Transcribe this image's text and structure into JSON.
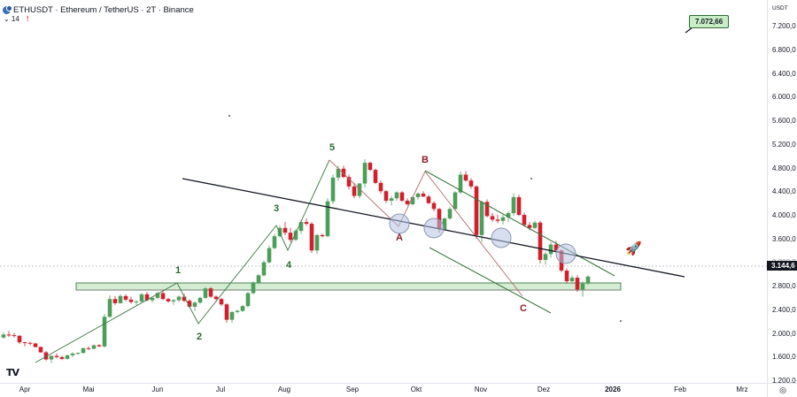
{
  "header": {
    "symbol_title": "ETHUSDT · Ethereum / TetherUS · 2T · Binance",
    "indicator_toggle": "⌄ 14",
    "alert_icon": "!"
  },
  "price_axis": {
    "unit": "USDT",
    "ticks": [
      "7.200,0",
      "6.800,0",
      "6.400,0",
      "6.000,0",
      "5.600,0",
      "5.200,0",
      "4.800,0",
      "4.400,0",
      "4.000,0",
      "3.600,0",
      "3.200,0",
      "2.800,0",
      "2.400,0",
      "2.000,0",
      "1.600,0",
      "1.200,0"
    ],
    "current_price": "3.144,6"
  },
  "time_axis": {
    "ticks": [
      "Apr",
      "Mai",
      "Jun",
      "Jul",
      "Aug",
      "Sep",
      "Okt",
      "Nov",
      "Dez",
      "2026",
      "Feb",
      "Mrz"
    ]
  },
  "annotations": {
    "target_callout": "7.072,66",
    "waves": [
      "1",
      "2",
      "3",
      "4",
      "5",
      "A",
      "B",
      "C"
    ],
    "rocket": "🚀"
  },
  "colors": {
    "up": "#4c9e5a",
    "down": "#d0202e",
    "trendline": "#131722",
    "channel": "#3f7a44",
    "zigzag_up": "#3f7a44",
    "zigzag_down": "#b06a6a",
    "zone_fill": "#d4ecd2",
    "zone_border": "#3f7a44",
    "circle_fill": "#d3dbea",
    "circle_border": "#8a97b0"
  },
  "chart_data": {
    "type": "candlestick",
    "title": "ETHUSDT · Ethereum / TetherUS · 2T · Binance",
    "xlabel": "",
    "ylabel": "USDT",
    "ylim": [
      1200,
      7400
    ],
    "x_range": [
      "2025-04",
      "2026-03"
    ],
    "grid": false,
    "timeframe": "2D",
    "last_price": 3144.6,
    "target_label": 7072.66,
    "support_zone": [
      2780,
      2880
    ],
    "wave_labels": [
      {
        "label": "1",
        "approx_price": 2880,
        "month": "Jun"
      },
      {
        "label": "2",
        "approx_price": 2140,
        "month": "Jun"
      },
      {
        "label": "3",
        "approx_price": 3940,
        "month": "Jul"
      },
      {
        "label": "4",
        "approx_price": 3350,
        "month": "Aug"
      },
      {
        "label": "5",
        "approx_price": 4950,
        "month": "Aug"
      },
      {
        "label": "A",
        "approx_price": 3820,
        "month": "Sep"
      },
      {
        "label": "B",
        "approx_price": 4760,
        "month": "Okt"
      },
      {
        "label": "C",
        "approx_price": 2620,
        "month": "Nov"
      }
    ],
    "candles": [
      [
        4,
        1950,
        2030,
        1930,
        2000
      ],
      [
        10,
        2000,
        2060,
        1960,
        1990
      ],
      [
        16,
        1990,
        2030,
        1950,
        1980
      ],
      [
        22,
        1980,
        1990,
        1840,
        1870
      ],
      [
        28,
        1870,
        1880,
        1800,
        1860
      ],
      [
        34,
        1860,
        1880,
        1820,
        1850
      ],
      [
        40,
        1850,
        1860,
        1780,
        1790
      ],
      [
        46,
        1790,
        1800,
        1690,
        1700
      ],
      [
        52,
        1700,
        1720,
        1560,
        1580
      ],
      [
        58,
        1580,
        1650,
        1520,
        1640
      ],
      [
        64,
        1640,
        1680,
        1600,
        1620
      ],
      [
        70,
        1620,
        1640,
        1570,
        1590
      ],
      [
        76,
        1590,
        1660,
        1580,
        1650
      ],
      [
        82,
        1650,
        1700,
        1620,
        1680
      ],
      [
        88,
        1680,
        1700,
        1660,
        1690
      ],
      [
        94,
        1690,
        1780,
        1680,
        1770
      ],
      [
        100,
        1770,
        1800,
        1740,
        1760
      ],
      [
        106,
        1760,
        1830,
        1750,
        1820
      ],
      [
        112,
        1820,
        1840,
        1790,
        1800
      ],
      [
        118,
        1800,
        2350,
        1780,
        2300
      ],
      [
        124,
        2300,
        2660,
        2280,
        2600
      ],
      [
        130,
        2600,
        2650,
        2500,
        2530
      ],
      [
        136,
        2530,
        2680,
        2520,
        2650
      ],
      [
        142,
        2650,
        2680,
        2560,
        2590
      ],
      [
        148,
        2590,
        2640,
        2520,
        2550
      ],
      [
        154,
        2550,
        2580,
        2500,
        2560
      ],
      [
        160,
        2560,
        2700,
        2540,
        2680
      ],
      [
        166,
        2680,
        2720,
        2560,
        2580
      ],
      [
        172,
        2580,
        2640,
        2540,
        2620
      ],
      [
        178,
        2620,
        2720,
        2600,
        2700
      ],
      [
        184,
        2700,
        2740,
        2580,
        2600
      ],
      [
        190,
        2600,
        2620,
        2540,
        2560
      ],
      [
        196,
        2560,
        2600,
        2500,
        2580
      ],
      [
        202,
        2580,
        2660,
        2550,
        2640
      ],
      [
        208,
        2640,
        2690,
        2550,
        2570
      ],
      [
        214,
        2570,
        2600,
        2450,
        2470
      ],
      [
        220,
        2470,
        2560,
        2400,
        2540
      ],
      [
        226,
        2540,
        2640,
        2520,
        2620
      ],
      [
        232,
        2620,
        2800,
        2600,
        2780
      ],
      [
        238,
        2780,
        2800,
        2620,
        2640
      ],
      [
        244,
        2640,
        2660,
        2580,
        2600
      ],
      [
        250,
        2600,
        2620,
        2480,
        2510
      ],
      [
        256,
        2510,
        2530,
        2200,
        2250
      ],
      [
        262,
        2250,
        2400,
        2200,
        2380
      ],
      [
        268,
        2380,
        2420,
        2360,
        2400
      ],
      [
        274,
        2400,
        2500,
        2380,
        2480
      ],
      [
        280,
        2480,
        2720,
        2460,
        2700
      ],
      [
        286,
        2700,
        2900,
        2680,
        2880
      ],
      [
        292,
        2880,
        3020,
        2860,
        3000
      ],
      [
        298,
        3000,
        3250,
        2980,
        3220
      ],
      [
        304,
        3220,
        3500,
        3200,
        3460
      ],
      [
        310,
        3460,
        3700,
        3440,
        3660
      ],
      [
        316,
        3660,
        3840,
        3640,
        3800
      ],
      [
        322,
        3800,
        3900,
        3680,
        3720
      ],
      [
        328,
        3720,
        3800,
        3560,
        3600
      ],
      [
        334,
        3600,
        3780,
        3580,
        3750
      ],
      [
        340,
        3750,
        3940,
        3700,
        3900
      ],
      [
        346,
        3900,
        3960,
        3840,
        3870
      ],
      [
        352,
        3870,
        3900,
        3380,
        3420
      ],
      [
        358,
        3420,
        3700,
        3360,
        3680
      ],
      [
        364,
        3680,
        3700,
        3640,
        3660
      ],
      [
        370,
        3660,
        4300,
        3640,
        4250
      ],
      [
        376,
        4250,
        4700,
        4200,
        4650
      ],
      [
        382,
        4650,
        4850,
        4600,
        4800
      ],
      [
        388,
        4800,
        4850,
        4640,
        4660
      ],
      [
        394,
        4660,
        4700,
        4450,
        4500
      ],
      [
        400,
        4500,
        4560,
        4300,
        4340
      ],
      [
        406,
        4340,
        4560,
        4300,
        4550
      ],
      [
        412,
        4550,
        4960,
        4480,
        4900
      ],
      [
        418,
        4900,
        4920,
        4760,
        4780
      ],
      [
        424,
        4780,
        4800,
        4540,
        4560
      ],
      [
        430,
        4560,
        4600,
        4380,
        4420
      ],
      [
        436,
        4420,
        4440,
        4220,
        4260
      ],
      [
        442,
        4260,
        4340,
        4180,
        4300
      ],
      [
        448,
        4300,
        4420,
        4260,
        4400
      ],
      [
        454,
        4400,
        4420,
        4240,
        4260
      ],
      [
        460,
        4260,
        4300,
        4180,
        4200
      ],
      [
        466,
        4200,
        4340,
        4180,
        4320
      ],
      [
        472,
        4320,
        4400,
        4280,
        4380
      ],
      [
        478,
        4380,
        4420,
        4320,
        4330
      ],
      [
        484,
        4330,
        4360,
        4200,
        4220
      ],
      [
        490,
        4220,
        4250,
        4080,
        4120
      ],
      [
        496,
        4120,
        4140,
        3720,
        3780
      ],
      [
        502,
        3780,
        3980,
        3760,
        3960
      ],
      [
        508,
        3960,
        4150,
        3940,
        4120
      ],
      [
        514,
        4120,
        4420,
        4100,
        4400
      ],
      [
        520,
        4400,
        4750,
        4380,
        4700
      ],
      [
        526,
        4700,
        4760,
        4580,
        4600
      ],
      [
        532,
        4600,
        4640,
        4460,
        4500
      ],
      [
        538,
        4500,
        4520,
        3620,
        3680
      ],
      [
        544,
        3680,
        4260,
        3560,
        4240
      ],
      [
        550,
        4240,
        4280,
        3980,
        4000
      ],
      [
        556,
        4000,
        4050,
        3900,
        3940
      ],
      [
        562,
        3940,
        4020,
        3880,
        3920
      ],
      [
        568,
        3920,
        4020,
        3860,
        3980
      ],
      [
        574,
        3980,
        4080,
        3900,
        4050
      ],
      [
        580,
        4050,
        4380,
        4000,
        4320
      ],
      [
        586,
        4320,
        4360,
        4000,
        4020
      ],
      [
        592,
        4020,
        4060,
        3820,
        3850
      ],
      [
        598,
        3850,
        3900,
        3760,
        3800
      ],
      [
        604,
        3800,
        3920,
        3780,
        3890
      ],
      [
        610,
        3890,
        3920,
        3200,
        3260
      ],
      [
        616,
        3260,
        3400,
        3180,
        3360
      ],
      [
        622,
        3360,
        3560,
        3300,
        3520
      ],
      [
        628,
        3520,
        3580,
        3380,
        3420
      ],
      [
        634,
        3420,
        3440,
        3050,
        3080
      ],
      [
        640,
        3080,
        3120,
        2860,
        2900
      ],
      [
        646,
        2900,
        3000,
        2880,
        2960
      ],
      [
        652,
        2960,
        3000,
        2720,
        2760
      ],
      [
        658,
        2760,
        2900,
        2640,
        2860
      ],
      [
        664,
        2860,
        3000,
        2840,
        2980
      ]
    ]
  }
}
